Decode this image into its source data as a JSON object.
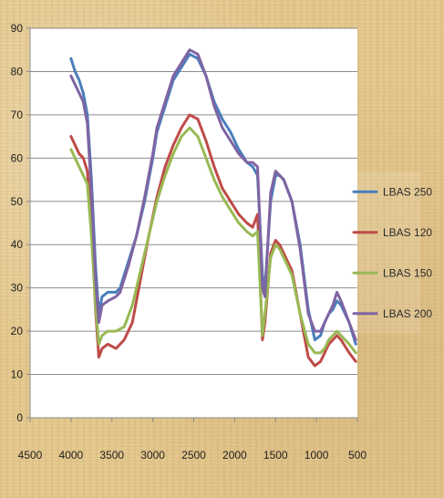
{
  "chart_data": {
    "type": "line",
    "title": "",
    "xlabel": "",
    "ylabel": "",
    "xlim": [
      4500,
      500
    ],
    "ylim": [
      0,
      90
    ],
    "x_ticks": [
      4500,
      4000,
      3500,
      3000,
      2500,
      2000,
      1500,
      1000,
      500
    ],
    "y_ticks": [
      0,
      10,
      20,
      30,
      40,
      50,
      60,
      70,
      80,
      90
    ],
    "grid": "horizontal",
    "legend_position": "right",
    "series": [
      {
        "name": "LBAS 250",
        "color": "#4a7ebb",
        "points": [
          [
            4000,
            83
          ],
          [
            3950,
            80
          ],
          [
            3900,
            78
          ],
          [
            3850,
            75
          ],
          [
            3800,
            70
          ],
          [
            3750,
            55
          ],
          [
            3700,
            35
          ],
          [
            3660,
            24
          ],
          [
            3620,
            28
          ],
          [
            3550,
            29
          ],
          [
            3450,
            29
          ],
          [
            3400,
            30
          ],
          [
            3300,
            36
          ],
          [
            3200,
            42
          ],
          [
            3100,
            50
          ],
          [
            3000,
            60
          ],
          [
            2950,
            66
          ],
          [
            2850,
            72
          ],
          [
            2750,
            78
          ],
          [
            2650,
            81
          ],
          [
            2550,
            84
          ],
          [
            2450,
            83
          ],
          [
            2350,
            79
          ],
          [
            2250,
            73
          ],
          [
            2150,
            69
          ],
          [
            2050,
            66
          ],
          [
            1950,
            62
          ],
          [
            1850,
            59
          ],
          [
            1780,
            58
          ],
          [
            1720,
            56
          ],
          [
            1660,
            33
          ],
          [
            1630,
            30
          ],
          [
            1560,
            50
          ],
          [
            1500,
            56
          ],
          [
            1450,
            56
          ],
          [
            1400,
            55
          ],
          [
            1300,
            50
          ],
          [
            1200,
            40
          ],
          [
            1100,
            25
          ],
          [
            1020,
            18
          ],
          [
            950,
            19
          ],
          [
            900,
            22
          ],
          [
            850,
            24
          ],
          [
            800,
            25
          ],
          [
            750,
            27
          ],
          [
            700,
            26
          ],
          [
            600,
            22
          ],
          [
            520,
            17
          ]
        ]
      },
      {
        "name": "LBAS 120",
        "color": "#be4b48",
        "points": [
          [
            4000,
            65
          ],
          [
            3950,
            63
          ],
          [
            3900,
            61
          ],
          [
            3850,
            60
          ],
          [
            3800,
            57
          ],
          [
            3750,
            45
          ],
          [
            3700,
            25
          ],
          [
            3660,
            14
          ],
          [
            3620,
            16
          ],
          [
            3550,
            17
          ],
          [
            3450,
            16
          ],
          [
            3350,
            18
          ],
          [
            3250,
            22
          ],
          [
            3150,
            32
          ],
          [
            3050,
            42
          ],
          [
            2950,
            51
          ],
          [
            2850,
            58
          ],
          [
            2750,
            63
          ],
          [
            2650,
            67
          ],
          [
            2550,
            70
          ],
          [
            2450,
            69
          ],
          [
            2350,
            64
          ],
          [
            2250,
            58
          ],
          [
            2150,
            53
          ],
          [
            2050,
            50
          ],
          [
            1950,
            47
          ],
          [
            1850,
            45
          ],
          [
            1780,
            44
          ],
          [
            1720,
            47
          ],
          [
            1660,
            18
          ],
          [
            1630,
            22
          ],
          [
            1560,
            38
          ],
          [
            1500,
            41
          ],
          [
            1450,
            40
          ],
          [
            1400,
            38
          ],
          [
            1300,
            34
          ],
          [
            1200,
            24
          ],
          [
            1100,
            14
          ],
          [
            1020,
            12
          ],
          [
            950,
            13
          ],
          [
            900,
            15
          ],
          [
            850,
            17
          ],
          [
            800,
            18
          ],
          [
            750,
            19
          ],
          [
            700,
            18
          ],
          [
            600,
            15
          ],
          [
            520,
            13
          ]
        ]
      },
      {
        "name": "LBAS 150",
        "color": "#98b954",
        "points": [
          [
            4000,
            62
          ],
          [
            3950,
            60
          ],
          [
            3900,
            58
          ],
          [
            3850,
            56
          ],
          [
            3800,
            54
          ],
          [
            3750,
            42
          ],
          [
            3700,
            26
          ],
          [
            3660,
            17
          ],
          [
            3620,
            19
          ],
          [
            3550,
            20
          ],
          [
            3450,
            20
          ],
          [
            3350,
            21
          ],
          [
            3250,
            26
          ],
          [
            3150,
            34
          ],
          [
            3050,
            42
          ],
          [
            2950,
            50
          ],
          [
            2850,
            56
          ],
          [
            2750,
            61
          ],
          [
            2650,
            65
          ],
          [
            2550,
            67
          ],
          [
            2450,
            65
          ],
          [
            2350,
            60
          ],
          [
            2250,
            55
          ],
          [
            2150,
            51
          ],
          [
            2050,
            48
          ],
          [
            1950,
            45
          ],
          [
            1850,
            43
          ],
          [
            1780,
            42
          ],
          [
            1720,
            43
          ],
          [
            1660,
            19
          ],
          [
            1630,
            24
          ],
          [
            1560,
            37
          ],
          [
            1500,
            40
          ],
          [
            1450,
            39
          ],
          [
            1400,
            37
          ],
          [
            1300,
            33
          ],
          [
            1200,
            24
          ],
          [
            1100,
            17
          ],
          [
            1020,
            15
          ],
          [
            950,
            15
          ],
          [
            900,
            16
          ],
          [
            850,
            18
          ],
          [
            800,
            19
          ],
          [
            750,
            20
          ],
          [
            700,
            19
          ],
          [
            600,
            17
          ],
          [
            520,
            15
          ]
        ]
      },
      {
        "name": "LBAS 200",
        "color": "#7f64a2",
        "points": [
          [
            4000,
            79
          ],
          [
            3950,
            77
          ],
          [
            3900,
            75
          ],
          [
            3850,
            73
          ],
          [
            3800,
            68
          ],
          [
            3750,
            52
          ],
          [
            3700,
            32
          ],
          [
            3660,
            22
          ],
          [
            3620,
            26
          ],
          [
            3550,
            27
          ],
          [
            3450,
            28
          ],
          [
            3400,
            29
          ],
          [
            3300,
            35
          ],
          [
            3200,
            42
          ],
          [
            3100,
            51
          ],
          [
            3000,
            61
          ],
          [
            2950,
            67
          ],
          [
            2850,
            73
          ],
          [
            2750,
            79
          ],
          [
            2650,
            82
          ],
          [
            2550,
            85
          ],
          [
            2450,
            84
          ],
          [
            2350,
            79
          ],
          [
            2250,
            72
          ],
          [
            2150,
            67
          ],
          [
            2050,
            64
          ],
          [
            1950,
            61
          ],
          [
            1850,
            59
          ],
          [
            1780,
            59
          ],
          [
            1720,
            58
          ],
          [
            1660,
            30
          ],
          [
            1630,
            28
          ],
          [
            1560,
            52
          ],
          [
            1500,
            57
          ],
          [
            1450,
            56
          ],
          [
            1400,
            55
          ],
          [
            1300,
            50
          ],
          [
            1200,
            39
          ],
          [
            1100,
            24
          ],
          [
            1020,
            20
          ],
          [
            950,
            20
          ],
          [
            900,
            22
          ],
          [
            850,
            24
          ],
          [
            800,
            26
          ],
          [
            750,
            29
          ],
          [
            700,
            27
          ],
          [
            600,
            22
          ],
          [
            520,
            18
          ]
        ]
      }
    ]
  }
}
